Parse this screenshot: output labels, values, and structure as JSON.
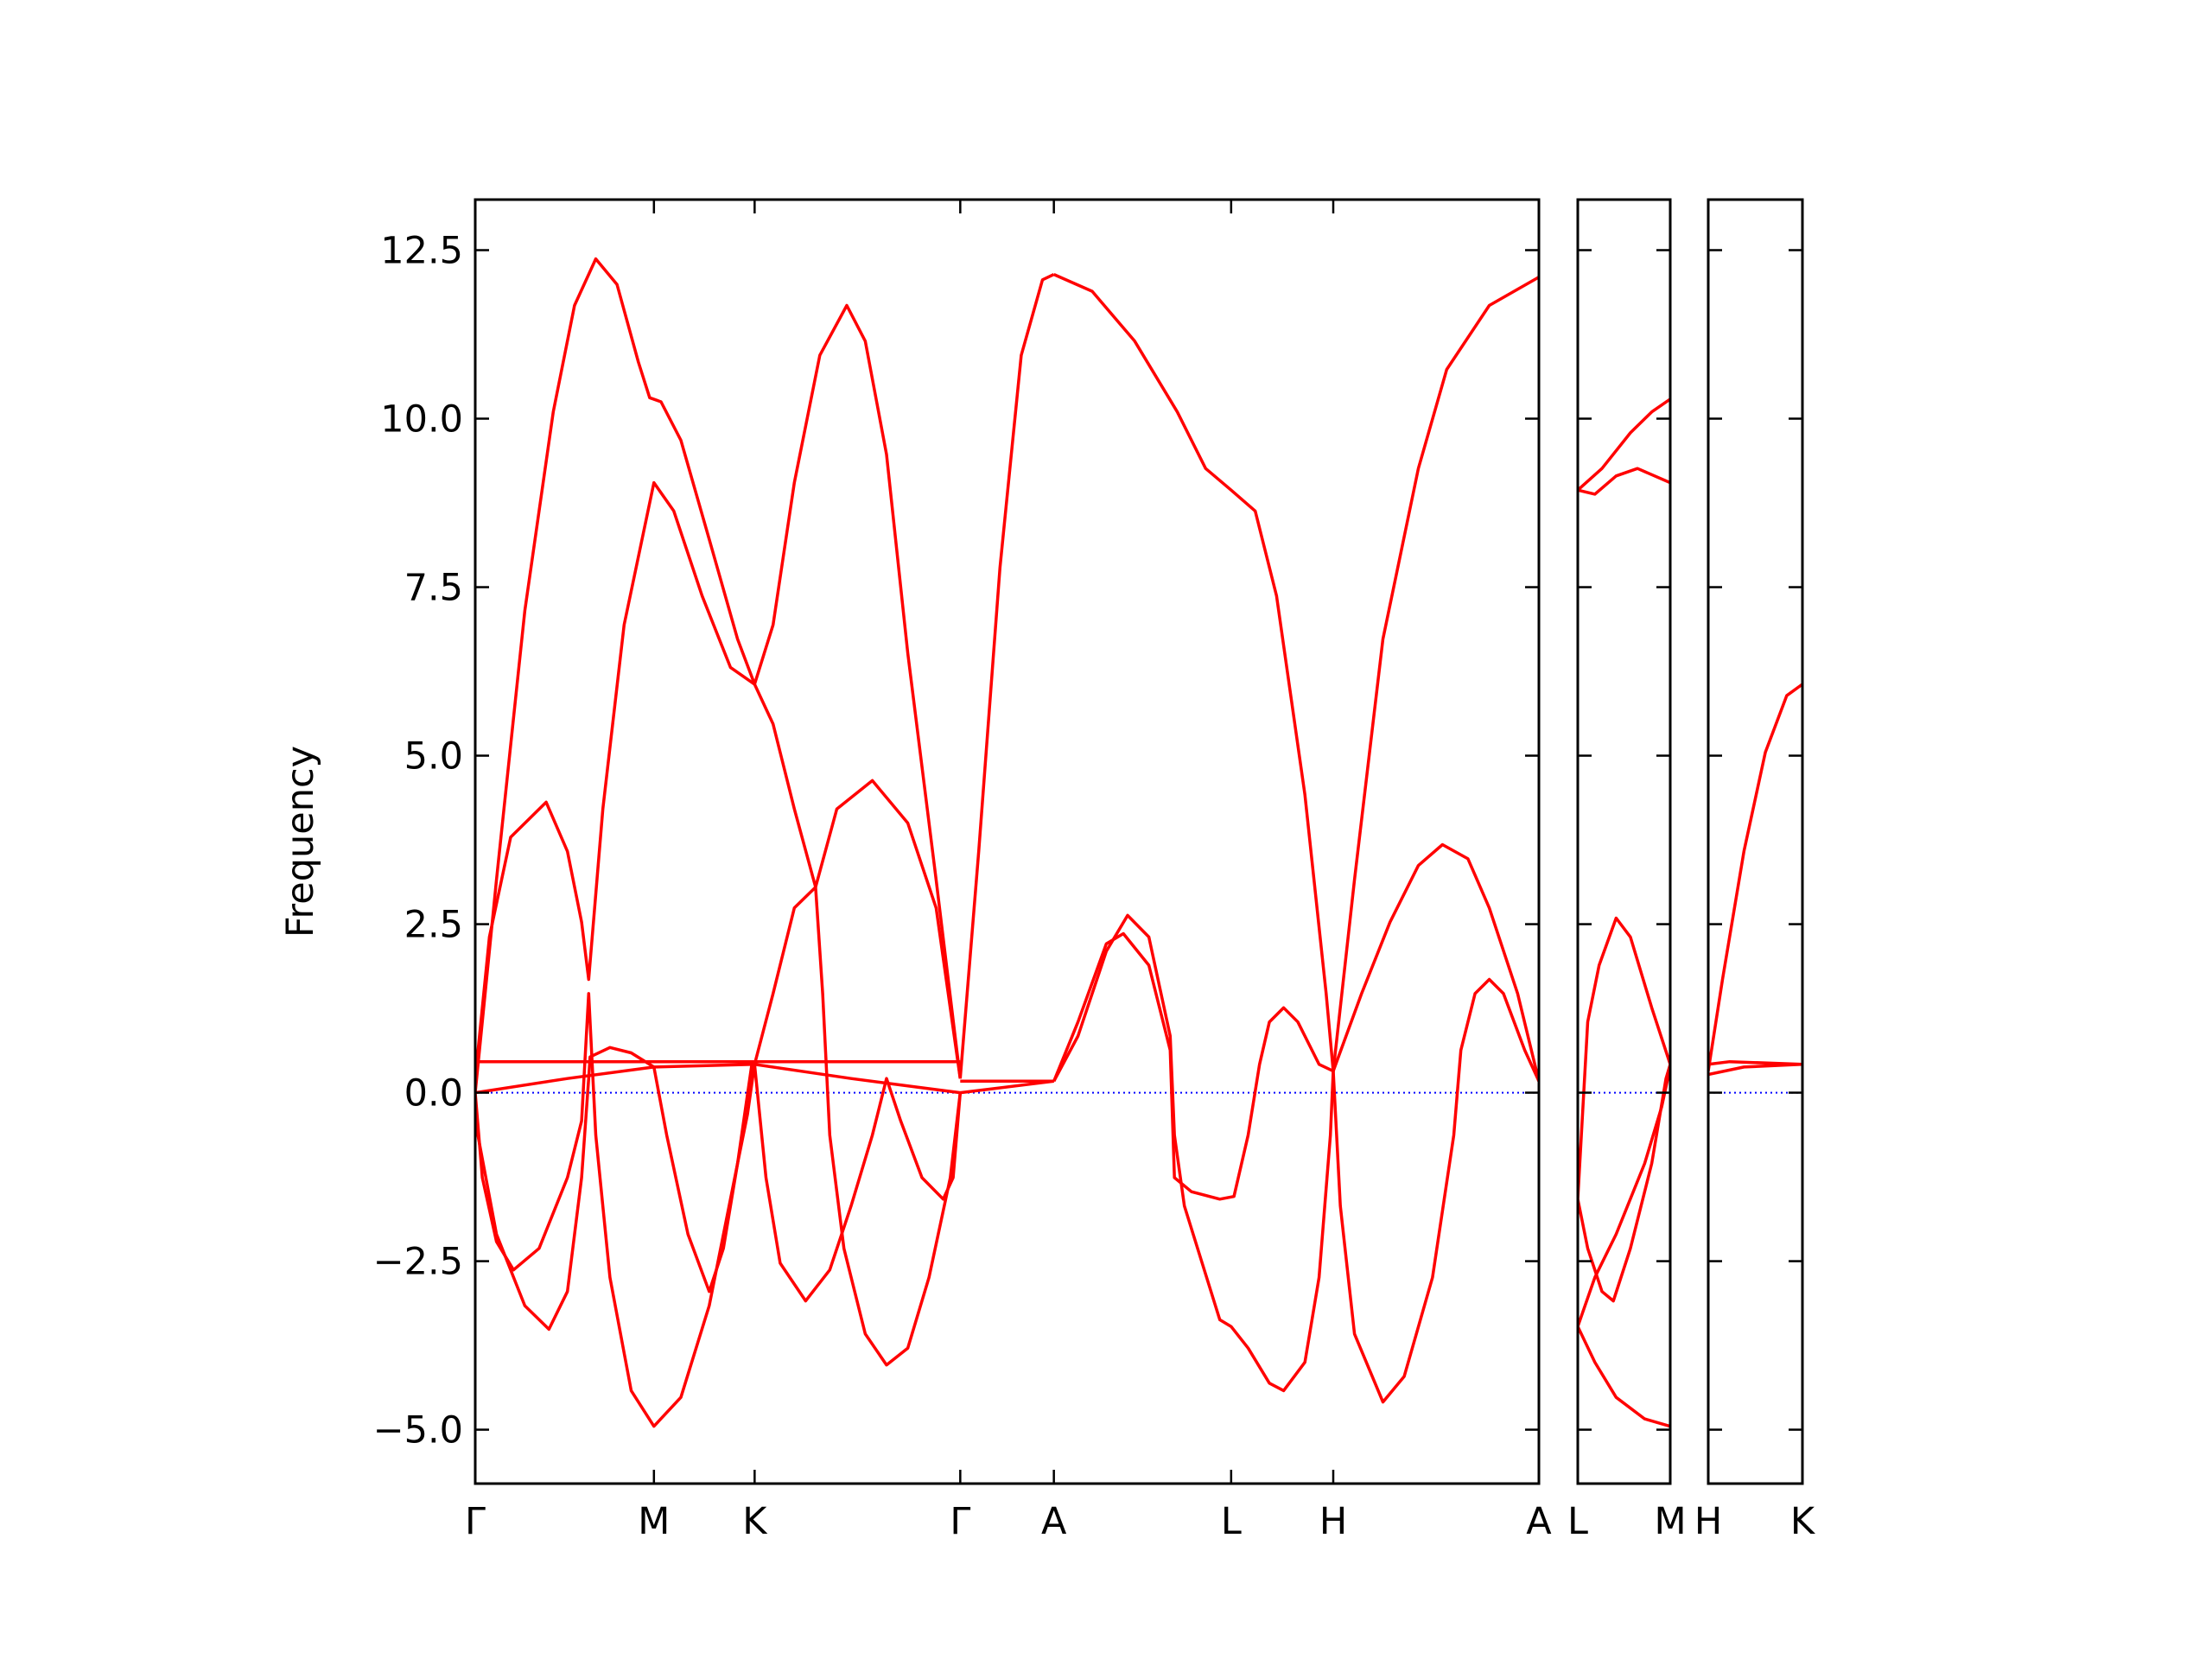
{
  "chart_data": [
    {
      "type": "line",
      "ylabel": "Frequency",
      "line_color": "#ff0000",
      "xlim": [
        0,
        7.5
      ],
      "ylim": [
        -5.8,
        13.25
      ],
      "show_ytick_labels": true,
      "hline": {
        "y": 0,
        "color": "#0000ff",
        "style": "dotted"
      },
      "xticks": [
        {
          "value": 0,
          "label": "Γ"
        },
        {
          "value": 1.26,
          "label": "M"
        },
        {
          "value": 1.97,
          "label": "K"
        },
        {
          "value": 3.42,
          "label": "Γ"
        },
        {
          "value": 4.08,
          "label": "A"
        },
        {
          "value": 5.33,
          "label": "L"
        },
        {
          "value": 6.05,
          "label": "H"
        },
        {
          "value": 7.5,
          "label": "A"
        }
      ],
      "yticks": [
        {
          "value": -5,
          "label": "−5.0"
        },
        {
          "value": -2.5,
          "label": "−2.5"
        },
        {
          "value": 0,
          "label": "0.0"
        },
        2.5,
        {
          "value": 5,
          "label": "5.0"
        },
        7.5,
        {
          "value": 10,
          "label": "10.0"
        },
        12.5
      ],
      "series": [
        {
          "x": [
            0,
            0.15,
            0.35,
            0.55,
            0.7,
            0.85,
            1.0,
            1.15,
            1.23,
            1.31,
            1.45,
            1.65,
            1.85,
            1.97,
            2.1,
            2.25,
            2.43,
            2.62,
            2.75,
            2.9,
            3.05,
            3.25,
            3.42
          ],
          "values": [
            0,
            3.16,
            7.15,
            10.1,
            11.68,
            12.37,
            11.99,
            10.84,
            10.31,
            10.25,
            9.68,
            8.21,
            6.73,
            6.06,
            6.94,
            9.05,
            10.94,
            11.68,
            11.15,
            9.47,
            6.52,
            3.16,
            0.21
          ]
        },
        {
          "x": [
            0,
            0.1,
            0.25,
            0.5,
            0.65,
            0.75,
            0.8,
            0.9,
            1.05,
            1.26,
            1.4,
            1.6,
            1.8,
            1.97,
            2.1,
            2.25,
            2.4,
            2.55,
            2.8,
            3.05,
            3.25,
            3.42
          ],
          "values": [
            0.21,
            2.31,
            3.79,
            4.31,
            3.58,
            2.53,
            1.68,
            4.21,
            6.94,
            9.05,
            8.63,
            7.37,
            6.31,
            6.06,
            5.47,
            4.21,
            3.05,
            4.21,
            4.63,
            4.0,
            2.74,
            0.21
          ]
        },
        {
          "x": [
            0,
            0.05,
            0.15,
            0.27,
            0.45,
            0.65,
            0.75,
            0.8,
            0.85,
            0.95,
            1.1,
            1.26,
            1.45,
            1.65,
            1.85,
            1.95
          ],
          "values": [
            0,
            -1.26,
            -2.21,
            -2.63,
            -2.31,
            -1.26,
            -0.42,
            1.47,
            -0.63,
            -2.74,
            -4.42,
            -4.95,
            -4.52,
            -3.16,
            -1.05,
            0.42
          ]
        },
        {
          "x": [
            0,
            0.15,
            0.35,
            0.52,
            0.65,
            0.75,
            0.8,
            0.81,
            0.95,
            1.1,
            1.26,
            1.35,
            1.5,
            1.65,
            1.75,
            1.85,
            1.92,
            1.97
          ],
          "values": [
            -0.42,
            -2.1,
            -3.16,
            -3.51,
            -2.95,
            -1.26,
            0.21,
            0.53,
            0.67,
            0.59,
            0.38,
            -0.63,
            -2.1,
            -2.95,
            -2.31,
            -1.05,
            -0.32,
            0.42
          ]
        },
        {
          "x": [
            0,
            3.42
          ],
          "values": [
            0.46,
            0.46
          ]
        },
        {
          "x": [
            0,
            0.65,
            1.26,
            1.97,
            2.65,
            3.42
          ],
          "values": [
            0,
            0.21,
            0.38,
            0.42,
            0.21,
            0
          ]
        },
        {
          "x": [
            1.97,
            2.05,
            2.15,
            2.33,
            2.5,
            2.65,
            2.8,
            2.9,
            3.0,
            3.15,
            3.3,
            3.37,
            3.42
          ],
          "values": [
            0.42,
            -1.26,
            -2.53,
            -3.09,
            -2.63,
            -1.68,
            -0.63,
            0.21,
            -0.42,
            -1.26,
            -1.58,
            -1.26,
            0
          ]
        },
        {
          "x": [
            1.97,
            2.1,
            2.25,
            2.4,
            2.45,
            2.5,
            2.6,
            2.75,
            2.9,
            3.05,
            3.2,
            3.35,
            3.42
          ],
          "values": [
            0.42,
            1.47,
            2.74,
            3.05,
            1.47,
            -0.63,
            -2.31,
            -3.58,
            -4.04,
            -3.79,
            -2.74,
            -1.26,
            0
          ]
        },
        {
          "x": [
            3.42,
            3.55,
            3.7,
            3.85,
            4.0,
            4.08
          ],
          "values": [
            0.21,
            3.58,
            7.79,
            10.94,
            12.06,
            12.14
          ]
        },
        {
          "x": [
            4.08,
            4.35,
            4.65,
            4.95,
            5.15,
            5.33,
            5.5,
            5.65,
            5.85,
            6.0,
            6.05
          ],
          "values": [
            12.14,
            11.89,
            11.15,
            10.1,
            9.26,
            8.94,
            8.63,
            7.37,
            4.42,
            1.47,
            0.32
          ]
        },
        {
          "x": [
            6.05,
            6.2,
            6.4,
            6.65,
            6.85,
            7.15,
            7.5
          ],
          "values": [
            0.32,
            3.16,
            6.73,
            9.26,
            10.73,
            11.68,
            12.1
          ]
        },
        {
          "x": [
            3.42,
            4.08
          ],
          "values": [
            0.17,
            0.17
          ]
        },
        {
          "x": [
            3.42,
            4.08
          ],
          "values": [
            0,
            0.17
          ]
        },
        {
          "x": [
            4.08,
            4.25,
            4.45,
            4.6,
            4.75,
            4.9,
            4.93,
            5.0,
            5.25,
            5.33,
            5.45,
            5.6,
            5.7,
            5.85,
            5.95,
            6.03,
            6.05
          ],
          "values": [
            0.17,
            0.84,
            2.1,
            2.63,
            2.31,
            0.84,
            -0.63,
            -1.68,
            -3.37,
            -3.47,
            -3.79,
            -4.31,
            -4.42,
            -4.0,
            -2.74,
            -0.63,
            0.32
          ]
        },
        {
          "x": [
            4.08,
            4.25,
            4.45,
            4.57,
            4.75,
            4.9,
            4.93,
            5.05,
            5.25,
            5.35,
            5.45,
            5.53,
            5.6,
            5.7,
            5.8,
            5.95,
            6.05
          ],
          "values": [
            0.17,
            1.05,
            2.21,
            2.36,
            1.89,
            0.63,
            -1.26,
            -1.47,
            -1.58,
            -1.54,
            -0.63,
            0.42,
            1.05,
            1.26,
            1.05,
            0.42,
            0.32
          ]
        },
        {
          "x": [
            6.05,
            6.1,
            6.2,
            6.4,
            6.55,
            6.75,
            6.9,
            6.95,
            7.05,
            7.15,
            7.25,
            7.4,
            7.5
          ],
          "values": [
            0.32,
            -1.68,
            -3.58,
            -4.59,
            -4.21,
            -2.74,
            -0.63,
            0.63,
            1.47,
            1.68,
            1.47,
            0.63,
            0.17
          ]
        },
        {
          "x": [
            6.05,
            6.25,
            6.45,
            6.65,
            6.82,
            7.0,
            7.15,
            7.35,
            7.5
          ],
          "values": [
            0.32,
            1.47,
            2.53,
            3.37,
            3.68,
            3.47,
            2.74,
            1.47,
            0.17
          ]
        }
      ]
    },
    {
      "type": "line",
      "line_color": "#ff0000",
      "xlim": [
        0,
        0.65
      ],
      "ylim": [
        -5.8,
        13.25
      ],
      "show_ytick_labels": false,
      "hline": {
        "y": 0,
        "color": "#0000ff",
        "style": "dotted"
      },
      "xticks": [
        {
          "value": 0,
          "label": "L"
        },
        {
          "value": 0.65,
          "label": "M"
        }
      ],
      "yticks": [
        -5,
        -2.5,
        0,
        2.5,
        5,
        7.5,
        10,
        12.5
      ],
      "series": [
        {
          "x": [
            0,
            0.12,
            0.27,
            0.42,
            0.65
          ],
          "values": [
            8.94,
            8.88,
            9.15,
            9.26,
            9.05
          ]
        },
        {
          "x": [
            0,
            0.17,
            0.37,
            0.52,
            0.65
          ],
          "values": [
            8.94,
            9.26,
            9.79,
            10.1,
            10.29
          ]
        },
        {
          "x": [
            0,
            0.07,
            0.15,
            0.27,
            0.37,
            0.52,
            0.65
          ],
          "values": [
            -1.58,
            1.05,
            1.89,
            2.59,
            2.31,
            1.26,
            0.42
          ]
        },
        {
          "x": [
            0,
            0.12,
            0.27,
            0.47,
            0.65
          ],
          "values": [
            -3.47,
            -4.0,
            -4.52,
            -4.84,
            -4.95
          ]
        },
        {
          "x": [
            0,
            0.12,
            0.27,
            0.47,
            0.59,
            0.65
          ],
          "values": [
            -3.47,
            -2.74,
            -2.1,
            -1.05,
            -0.21,
            0.38
          ]
        },
        {
          "x": [
            0,
            0.07,
            0.17,
            0.25,
            0.37,
            0.52,
            0.62,
            0.65
          ],
          "values": [
            -1.58,
            -2.31,
            -2.95,
            -3.09,
            -2.31,
            -1.05,
            0.21,
            0.42
          ]
        }
      ]
    },
    {
      "type": "line",
      "line_color": "#ff0000",
      "xlim": [
        0,
        0.66
      ],
      "ylim": [
        -5.8,
        13.25
      ],
      "show_ytick_labels": false,
      "hline": {
        "y": 0,
        "color": "#0000ff",
        "style": "dotted"
      },
      "xticks": [
        {
          "value": 0,
          "label": "H"
        },
        {
          "value": 0.66,
          "label": "K"
        }
      ],
      "yticks": [
        -5,
        -2.5,
        0,
        2.5,
        5,
        7.5,
        10,
        12.5
      ],
      "series": [
        {
          "x": [
            0,
            0.1,
            0.25,
            0.4,
            0.55,
            0.66
          ],
          "values": [
            0.32,
            1.68,
            3.58,
            5.05,
            5.89,
            6.06
          ]
        },
        {
          "x": [
            0,
            0.15,
            0.66
          ],
          "values": [
            0.42,
            0.46,
            0.42
          ]
        },
        {
          "x": [
            0,
            0.25,
            0.66
          ],
          "values": [
            0.27,
            0.38,
            0.42
          ]
        }
      ]
    }
  ]
}
